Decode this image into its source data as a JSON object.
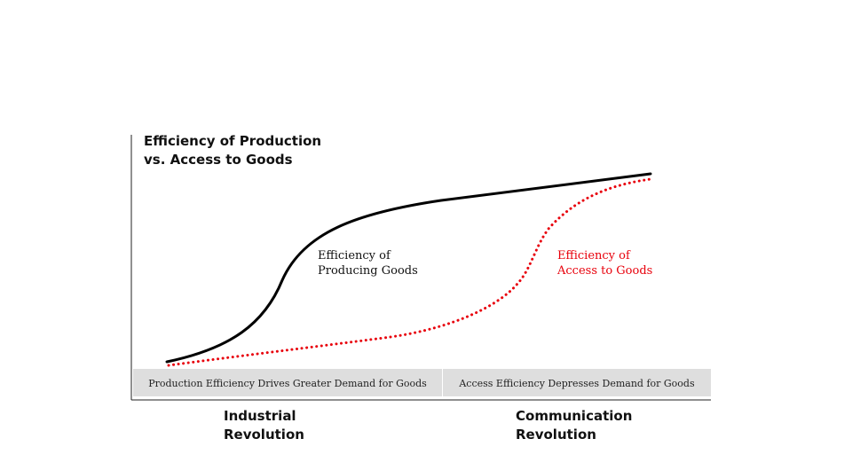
{
  "chart_data": {
    "type": "line",
    "title_lines": [
      "Efficiency of Production",
      "vs. Access to Goods"
    ],
    "xlabel": "",
    "ylabel": "",
    "x_categories": [
      "Industrial Revolution",
      "Communication Revolution"
    ],
    "bands": [
      "Production Efficiency Drives Greater Demand for Goods",
      "Access Efficiency Depresses Demand for Goods"
    ],
    "series": [
      {
        "name_lines": [
          "Efficiency of",
          "Producing Goods"
        ],
        "style": "solid",
        "color": "#000000",
        "shape": "s-curve rising early, then flattening"
      },
      {
        "name_lines": [
          "Efficiency of",
          "Access to Goods"
        ],
        "style": "dotted",
        "color": "#e8000b",
        "shape": "slow rise, sharp rise late, converging with production curve at right"
      }
    ],
    "grid": false,
    "legend": "inline labels"
  }
}
